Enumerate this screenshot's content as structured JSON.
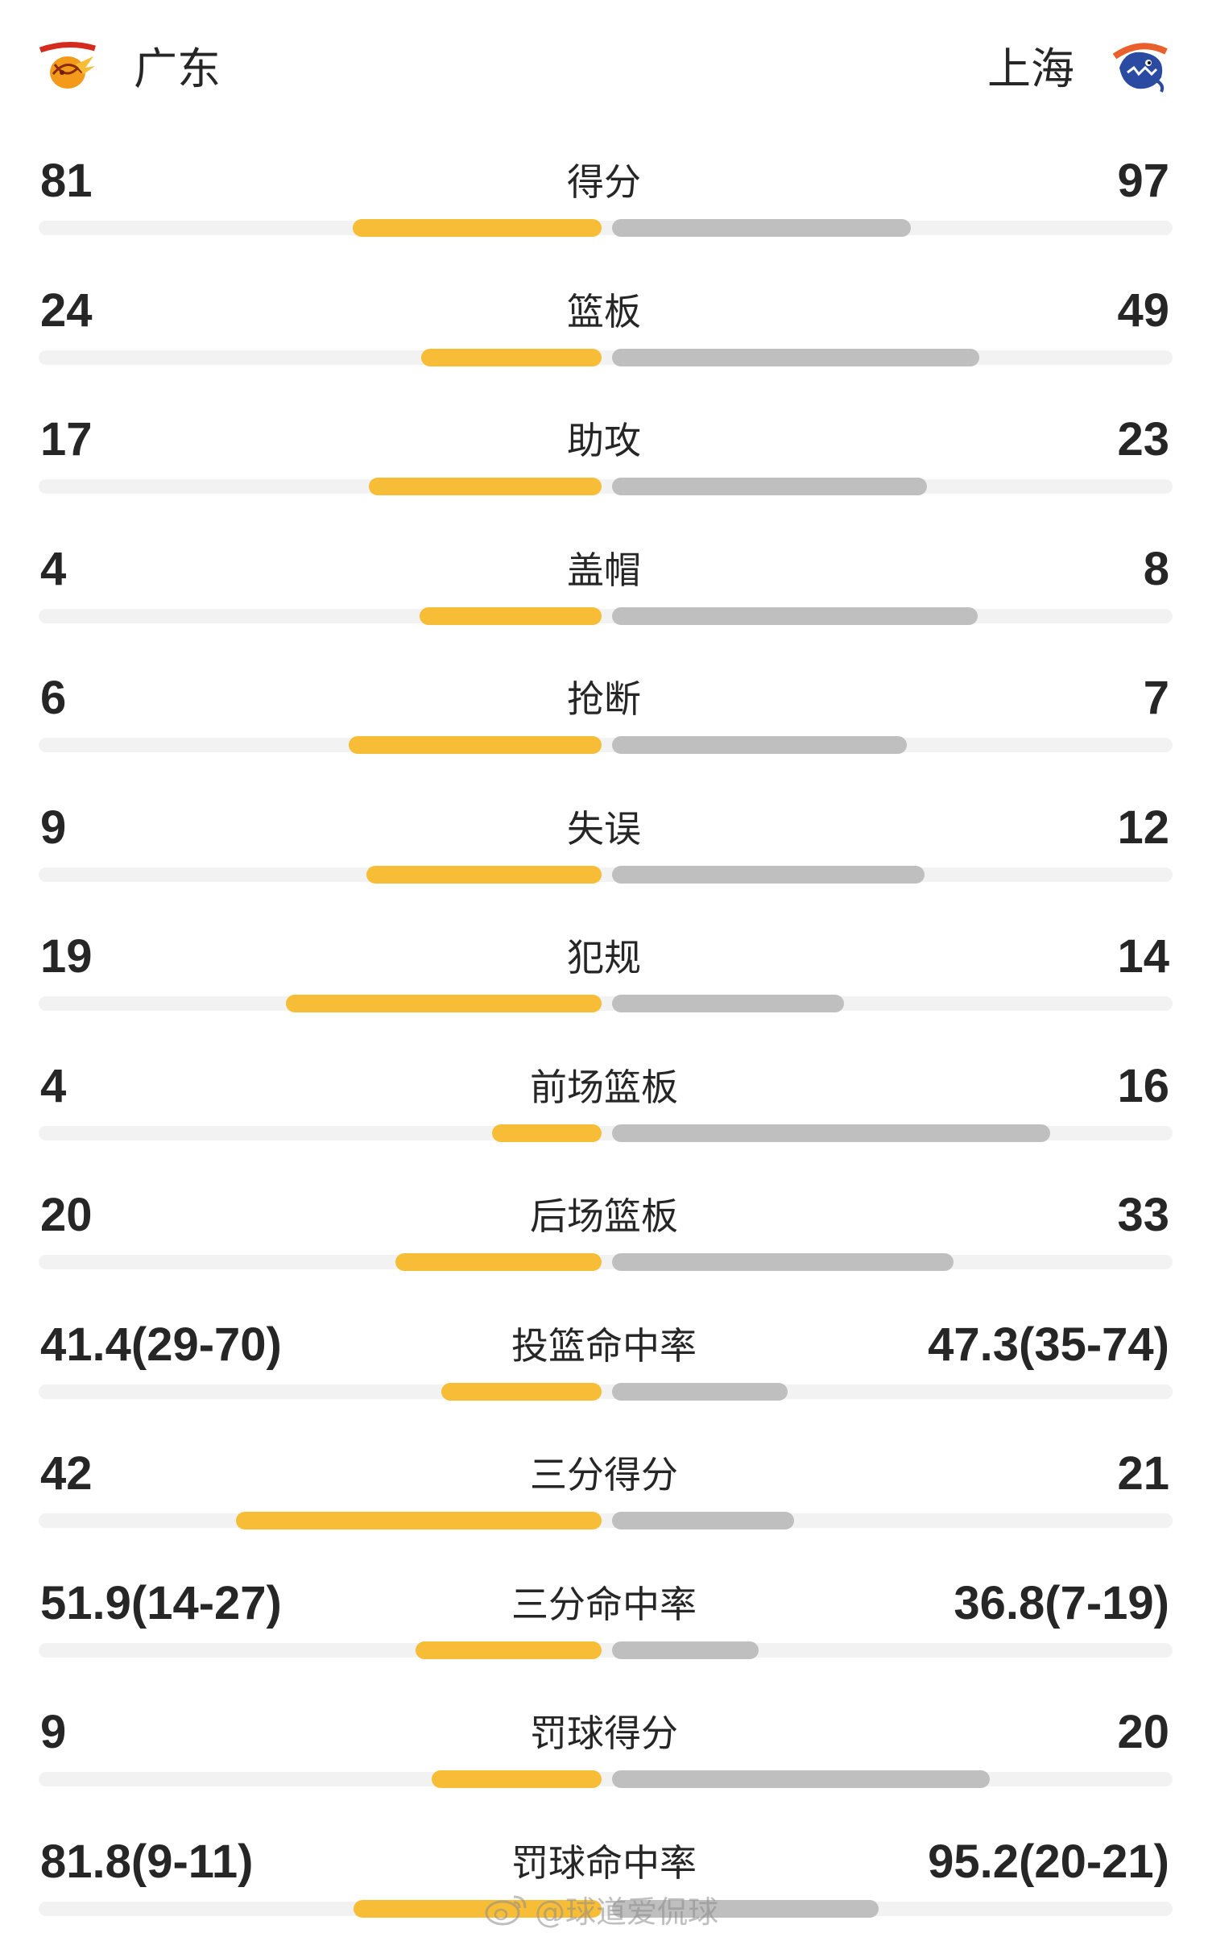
{
  "header": {
    "home": {
      "name": "广东",
      "color": "#f8bd36"
    },
    "away": {
      "name": "上海",
      "color": "#bfbfbf"
    }
  },
  "stats": [
    {
      "label": "得分",
      "home": "81",
      "away": "97",
      "home_ratio": 0.455,
      "away_ratio": 0.545
    },
    {
      "label": "篮板",
      "home": "24",
      "away": "49",
      "home_ratio": 0.329,
      "away_ratio": 0.671
    },
    {
      "label": "助攻",
      "home": "17",
      "away": "23",
      "home_ratio": 0.425,
      "away_ratio": 0.575
    },
    {
      "label": "盖帽",
      "home": "4",
      "away": "8",
      "home_ratio": 0.333,
      "away_ratio": 0.667
    },
    {
      "label": "抢断",
      "home": "6",
      "away": "7",
      "home_ratio": 0.462,
      "away_ratio": 0.538
    },
    {
      "label": "失误",
      "home": "9",
      "away": "12",
      "home_ratio": 0.429,
      "away_ratio": 0.571
    },
    {
      "label": "犯规",
      "home": "19",
      "away": "14",
      "home_ratio": 0.576,
      "away_ratio": 0.424
    },
    {
      "label": "前场篮板",
      "home": "4",
      "away": "16",
      "home_ratio": 0.2,
      "away_ratio": 0.8
    },
    {
      "label": "后场篮板",
      "home": "20",
      "away": "33",
      "home_ratio": 0.377,
      "away_ratio": 0.623
    },
    {
      "label": "投篮命中率",
      "home": "41.4(29-70)",
      "away": "47.3(35-74)",
      "home_ratio": 0.292,
      "away_ratio": 0.32
    },
    {
      "label": "三分得分",
      "home": "42",
      "away": "21",
      "home_ratio": 0.667,
      "away_ratio": 0.333
    },
    {
      "label": "三分命中率",
      "home": "51.9(14-27)",
      "away": "36.8(7-19)",
      "home_ratio": 0.34,
      "away_ratio": 0.268
    },
    {
      "label": "罚球得分",
      "home": "9",
      "away": "20",
      "home_ratio": 0.31,
      "away_ratio": 0.69
    },
    {
      "label": "罚球命中率",
      "home": "81.8(9-11)",
      "away": "95.2(20-21)",
      "home_ratio": 0.453,
      "away_ratio": 0.487
    }
  ],
  "watermark": {
    "text": "@球道爱侃球",
    "icon": "weibo-icon"
  }
}
